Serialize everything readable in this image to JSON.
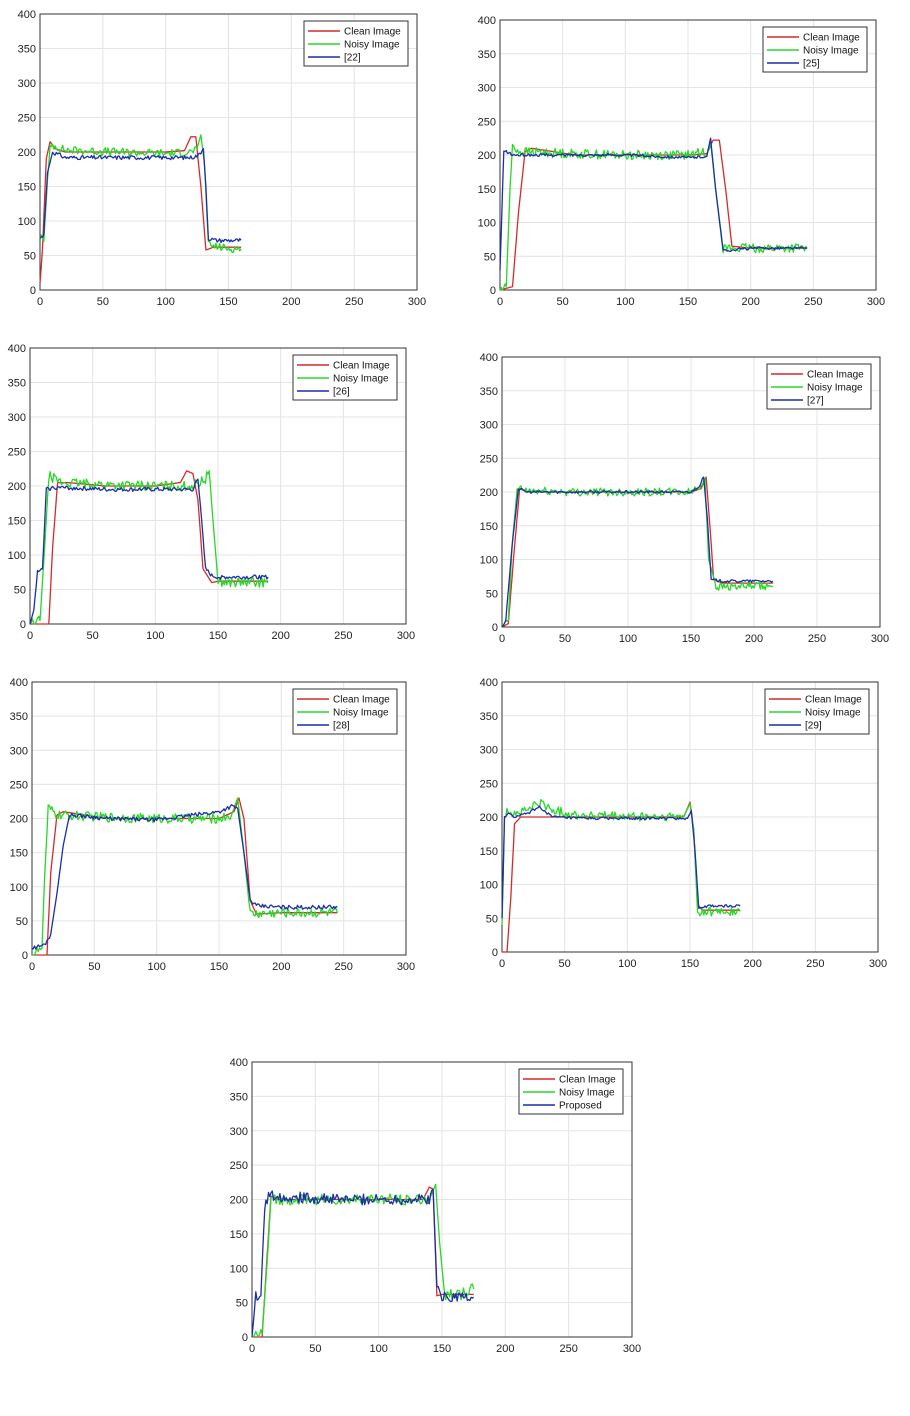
{
  "colors": {
    "clean": "#d42a2a",
    "noisy": "#27d827",
    "method": "#1c2ea8"
  },
  "chart_data": [
    {
      "type": "line",
      "xlim": [
        0,
        300
      ],
      "ylim": [
        0,
        400
      ],
      "xticks": [
        0,
        50,
        100,
        150,
        200,
        250,
        300
      ],
      "yticks": [
        0,
        50,
        100,
        150,
        200,
        250,
        300,
        350,
        400
      ],
      "grid": true,
      "legend_position": "top-right",
      "series": [
        {
          "name": "Clean Image",
          "color": "#d42a2a",
          "x": [
            0,
            2,
            5,
            8,
            12,
            20,
            60,
            100,
            115,
            120,
            124,
            128,
            132,
            138,
            150,
            160
          ],
          "y": [
            10,
            60,
            190,
            215,
            205,
            200,
            200,
            200,
            202,
            222,
            222,
            150,
            58,
            62,
            62,
            62
          ]
        },
        {
          "name": "Noisy Image",
          "color": "#27d827",
          "noise": 6,
          "x": [
            0,
            3,
            6,
            8,
            10,
            20,
            60,
            100,
            120,
            125,
            128,
            131,
            134,
            140,
            150,
            160
          ],
          "y": [
            80,
            70,
            160,
            205,
            210,
            203,
            200,
            198,
            200,
            205,
            225,
            180,
            65,
            63,
            60,
            60
          ]
        },
        {
          "name": "[22]",
          "color": "#1c2ea8",
          "noise": 3,
          "x": [
            0,
            3,
            6,
            10,
            20,
            60,
            100,
            120,
            126,
            130,
            132,
            134,
            140,
            150,
            160
          ],
          "y": [
            75,
            80,
            170,
            200,
            192,
            192,
            192,
            192,
            195,
            205,
            150,
            75,
            72,
            72,
            72
          ]
        }
      ]
    },
    {
      "type": "line",
      "xlim": [
        0,
        300
      ],
      "ylim": [
        0,
        400
      ],
      "xticks": [
        0,
        50,
        100,
        150,
        200,
        250,
        300
      ],
      "yticks": [
        0,
        50,
        100,
        150,
        200,
        250,
        300,
        350,
        400
      ],
      "grid": true,
      "legend_position": "top-right",
      "series": [
        {
          "name": "Clean Image",
          "color": "#d42a2a",
          "x": [
            0,
            10,
            15,
            20,
            25,
            60,
            100,
            150,
            165,
            170,
            175,
            180,
            185,
            200,
            245
          ],
          "y": [
            0,
            5,
            120,
            205,
            210,
            200,
            200,
            200,
            202,
            222,
            222,
            150,
            65,
            62,
            62
          ]
        },
        {
          "name": "Noisy Image",
          "color": "#27d827",
          "noise": 7,
          "x": [
            0,
            5,
            8,
            10,
            15,
            60,
            100,
            150,
            165,
            168,
            172,
            178,
            200,
            245
          ],
          "y": [
            0,
            5,
            150,
            215,
            205,
            202,
            200,
            200,
            205,
            220,
            150,
            62,
            62,
            62
          ]
        },
        {
          "name": "[25]",
          "color": "#1c2ea8",
          "noise": 2,
          "x": [
            0,
            3,
            5,
            10,
            30,
            100,
            150,
            165,
            168,
            172,
            178,
            200,
            245
          ],
          "y": [
            30,
            205,
            205,
            200,
            200,
            200,
            196,
            198,
            225,
            150,
            58,
            62,
            62
          ]
        }
      ]
    },
    {
      "type": "line",
      "xlim": [
        0,
        300
      ],
      "ylim": [
        0,
        400
      ],
      "xticks": [
        0,
        50,
        100,
        150,
        200,
        250,
        300
      ],
      "yticks": [
        0,
        50,
        100,
        150,
        200,
        250,
        300,
        350,
        400
      ],
      "grid": true,
      "legend_position": "top-right",
      "series": [
        {
          "name": "Clean Image",
          "color": "#d42a2a",
          "x": [
            0,
            15,
            18,
            22,
            30,
            60,
            100,
            120,
            125,
            130,
            134,
            138,
            145,
            150,
            190
          ],
          "y": [
            0,
            0,
            110,
            205,
            205,
            200,
            200,
            205,
            222,
            218,
            180,
            80,
            60,
            62,
            62
          ]
        },
        {
          "name": "Noisy Image",
          "color": "#27d827",
          "noise": 7,
          "x": [
            0,
            8,
            12,
            15,
            25,
            60,
            100,
            130,
            140,
            143,
            146,
            150,
            160,
            190
          ],
          "y": [
            0,
            5,
            120,
            215,
            205,
            202,
            200,
            200,
            210,
            222,
            150,
            62,
            60,
            60
          ]
        },
        {
          "name": "[26]",
          "color": "#1c2ea8",
          "noise": 3,
          "x": [
            0,
            3,
            6,
            10,
            13,
            20,
            60,
            100,
            130,
            134,
            137,
            140,
            145,
            150,
            190
          ],
          "y": [
            0,
            20,
            75,
            80,
            195,
            198,
            195,
            195,
            195,
            210,
            150,
            80,
            70,
            68,
            68
          ]
        }
      ]
    },
    {
      "type": "line",
      "xlim": [
        0,
        300
      ],
      "ylim": [
        0,
        400
      ],
      "xticks": [
        0,
        50,
        100,
        150,
        200,
        250,
        300
      ],
      "yticks": [
        0,
        50,
        100,
        150,
        200,
        250,
        300,
        350,
        400
      ],
      "grid": true,
      "legend_position": "top-right",
      "series": [
        {
          "name": "Clean Image",
          "color": "#d42a2a",
          "x": [
            0,
            5,
            10,
            14,
            20,
            60,
            100,
            150,
            158,
            162,
            165,
            168,
            175,
            200,
            215
          ],
          "y": [
            0,
            5,
            120,
            205,
            200,
            200,
            200,
            200,
            205,
            222,
            150,
            70,
            65,
            65,
            65
          ]
        },
        {
          "name": "Noisy Image",
          "color": "#27d827",
          "noise": 6,
          "x": [
            0,
            5,
            8,
            12,
            20,
            60,
            100,
            150,
            158,
            161,
            164,
            170,
            200,
            215
          ],
          "y": [
            0,
            10,
            120,
            205,
            202,
            200,
            200,
            200,
            210,
            220,
            100,
            60,
            60,
            60
          ]
        },
        {
          "name": "[27]",
          "color": "#1c2ea8",
          "noise": 2,
          "x": [
            0,
            3,
            8,
            13,
            20,
            60,
            100,
            150,
            157,
            160,
            163,
            166,
            175,
            200,
            215
          ],
          "y": [
            0,
            10,
            120,
            205,
            200,
            200,
            200,
            200,
            210,
            222,
            160,
            70,
            68,
            68,
            68
          ]
        }
      ]
    },
    {
      "type": "line",
      "xlim": [
        0,
        300
      ],
      "ylim": [
        0,
        400
      ],
      "xticks": [
        0,
        50,
        100,
        150,
        200,
        250,
        300
      ],
      "yticks": [
        0,
        50,
        100,
        150,
        200,
        250,
        300,
        350,
        400
      ],
      "grid": true,
      "legend_position": "top-right",
      "series": [
        {
          "name": "Clean Image",
          "color": "#d42a2a",
          "x": [
            0,
            12,
            15,
            20,
            25,
            60,
            100,
            150,
            162,
            166,
            170,
            175,
            180,
            200,
            245
          ],
          "y": [
            0,
            0,
            120,
            205,
            210,
            200,
            200,
            200,
            210,
            230,
            200,
            80,
            60,
            62,
            62
          ]
        },
        {
          "name": "Noisy Image",
          "color": "#27d827",
          "noise": 7,
          "x": [
            0,
            8,
            10,
            13,
            20,
            60,
            100,
            150,
            160,
            165,
            170,
            175,
            200,
            245
          ],
          "y": [
            0,
            10,
            110,
            215,
            205,
            202,
            200,
            200,
            205,
            230,
            150,
            60,
            62,
            62
          ]
        },
        {
          "name": "[28]",
          "color": "#1c2ea8",
          "noise": 3,
          "x": [
            0,
            10,
            15,
            20,
            25,
            30,
            35,
            60,
            100,
            150,
            160,
            165,
            170,
            175,
            180,
            200,
            245
          ],
          "y": [
            10,
            15,
            30,
            90,
            160,
            205,
            205,
            200,
            198,
            210,
            218,
            215,
            150,
            80,
            72,
            70,
            70
          ]
        }
      ]
    },
    {
      "type": "line",
      "xlim": [
        0,
        300
      ],
      "ylim": [
        0,
        400
      ],
      "xticks": [
        0,
        50,
        100,
        150,
        200,
        250,
        300
      ],
      "yticks": [
        0,
        50,
        100,
        150,
        200,
        250,
        300,
        350,
        400
      ],
      "grid": true,
      "legend_position": "top-right",
      "series": [
        {
          "name": "Clean Image",
          "color": "#d42a2a",
          "x": [
            0,
            4,
            7,
            10,
            15,
            30,
            60,
            100,
            145,
            150,
            153,
            156,
            160,
            190
          ],
          "y": [
            0,
            0,
            80,
            190,
            200,
            200,
            200,
            200,
            200,
            222,
            180,
            70,
            62,
            62
          ]
        },
        {
          "name": "Noisy Image",
          "color": "#27d827",
          "noise": 7,
          "x": [
            0,
            2,
            5,
            10,
            20,
            30,
            40,
            60,
            100,
            145,
            150,
            153,
            156,
            160,
            190
          ],
          "y": [
            40,
            200,
            210,
            205,
            210,
            222,
            210,
            203,
            200,
            200,
            220,
            180,
            60,
            60,
            60
          ]
        },
        {
          "name": "[29]",
          "color": "#1c2ea8",
          "noise": 2,
          "x": [
            0,
            2,
            5,
            10,
            20,
            30,
            40,
            60,
            100,
            148,
            151,
            154,
            157,
            165,
            190
          ],
          "y": [
            50,
            200,
            205,
            200,
            205,
            215,
            200,
            198,
            198,
            198,
            210,
            150,
            65,
            68,
            68
          ]
        }
      ]
    },
    {
      "type": "line",
      "xlim": [
        0,
        300
      ],
      "ylim": [
        0,
        400
      ],
      "xticks": [
        0,
        50,
        100,
        150,
        200,
        250,
        300
      ],
      "yticks": [
        0,
        50,
        100,
        150,
        200,
        250,
        300,
        350,
        400
      ],
      "grid": true,
      "legend_position": "top-right",
      "series": [
        {
          "name": "Clean Image",
          "color": "#d42a2a",
          "x": [
            0,
            8,
            12,
            15,
            20,
            60,
            100,
            135,
            140,
            143,
            146,
            150,
            175
          ],
          "y": [
            0,
            0,
            120,
            205,
            200,
            200,
            200,
            200,
            218,
            215,
            60,
            62,
            62
          ]
        },
        {
          "name": "Noisy Image",
          "color": "#27d827",
          "noise": 8,
          "x": [
            0,
            8,
            12,
            15,
            20,
            60,
            100,
            140,
            145,
            148,
            152,
            165,
            175
          ],
          "y": [
            0,
            5,
            110,
            200,
            200,
            200,
            200,
            200,
            222,
            140,
            62,
            62,
            70
          ]
        },
        {
          "name": "Proposed",
          "color": "#1c2ea8",
          "noise": 8,
          "x": [
            0,
            3,
            7,
            10,
            14,
            20,
            60,
            100,
            140,
            143,
            146,
            150,
            175
          ],
          "y": [
            0,
            60,
            60,
            190,
            208,
            205,
            200,
            200,
            200,
            215,
            70,
            60,
            58
          ]
        }
      ]
    }
  ]
}
